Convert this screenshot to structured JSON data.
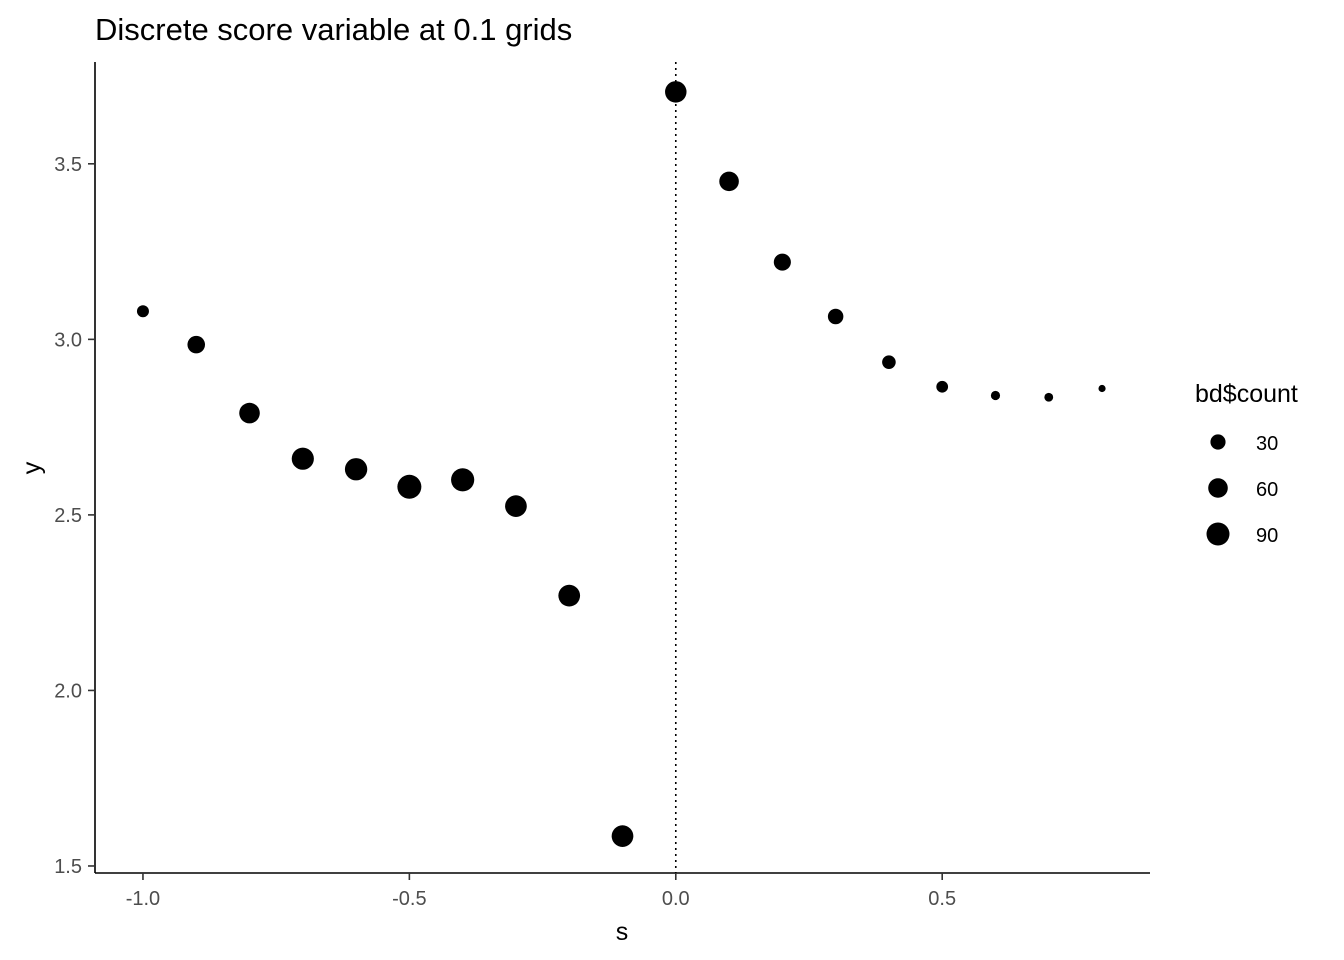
{
  "chart_data": {
    "type": "scatter",
    "title": "Discrete score variable at 0.1 grids",
    "xlabel": "s",
    "ylabel": "y",
    "xlim": [
      -1.09,
      0.89
    ],
    "ylim": [
      1.48,
      3.79
    ],
    "xticks": [
      -1.0,
      -0.5,
      0.0,
      0.5
    ],
    "xtick_labels": [
      "-1.0",
      "-0.5",
      "0.0",
      "0.5"
    ],
    "yticks": [
      1.5,
      2.0,
      2.5,
      3.0,
      3.5
    ],
    "ytick_labels": [
      "1.5",
      "2.0",
      "2.5",
      "3.0",
      "3.5"
    ],
    "grid": false,
    "vline": {
      "x": 0.0,
      "style": "dotted"
    },
    "point_color": "#000000",
    "size_variable": "bd$count",
    "points": [
      {
        "x": -1.0,
        "y": 3.08,
        "count": 15
      },
      {
        "x": -0.9,
        "y": 2.985,
        "count": 45
      },
      {
        "x": -0.8,
        "y": 2.79,
        "count": 68
      },
      {
        "x": -0.7,
        "y": 2.66,
        "count": 82
      },
      {
        "x": -0.6,
        "y": 2.63,
        "count": 84
      },
      {
        "x": -0.5,
        "y": 2.58,
        "count": 100
      },
      {
        "x": -0.4,
        "y": 2.6,
        "count": 92
      },
      {
        "x": -0.3,
        "y": 2.525,
        "count": 78
      },
      {
        "x": -0.2,
        "y": 2.27,
        "count": 78
      },
      {
        "x": -0.1,
        "y": 1.585,
        "count": 78
      },
      {
        "x": 0.0,
        "y": 3.705,
        "count": 76
      },
      {
        "x": 0.1,
        "y": 3.45,
        "count": 60
      },
      {
        "x": 0.2,
        "y": 3.22,
        "count": 42
      },
      {
        "x": 0.3,
        "y": 3.065,
        "count": 32
      },
      {
        "x": 0.4,
        "y": 2.935,
        "count": 22
      },
      {
        "x": 0.5,
        "y": 2.865,
        "count": 14
      },
      {
        "x": 0.6,
        "y": 2.84,
        "count": 6
      },
      {
        "x": 0.7,
        "y": 2.835,
        "count": 5
      },
      {
        "x": 0.8,
        "y": 2.86,
        "count": 2
      }
    ],
    "legend": {
      "title": "bd$count",
      "placement": "right",
      "entries": [
        {
          "label": "30",
          "count": 30
        },
        {
          "label": "60",
          "count": 60
        },
        {
          "label": "90",
          "count": 90
        }
      ]
    }
  }
}
